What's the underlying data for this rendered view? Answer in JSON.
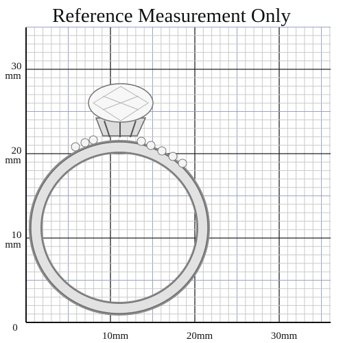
{
  "title": "Reference Measurement Only",
  "y_labels": [
    {
      "number": "30",
      "unit": "mm"
    },
    {
      "number": "20",
      "unit": "mm"
    },
    {
      "number": "10",
      "unit": "mm"
    }
  ],
  "origin_label": "0",
  "x_labels": [
    "10mm",
    "20mm",
    "30mm"
  ]
}
